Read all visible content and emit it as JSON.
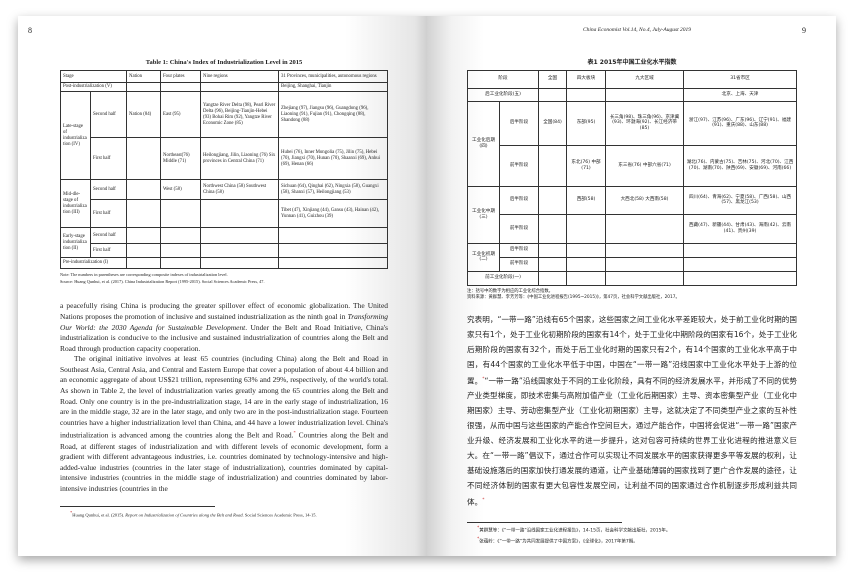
{
  "left_page": {
    "page_number": "8",
    "table": {
      "title": "Table 1: China's Index of Industrialization Level in 2015",
      "headers": [
        "Stage",
        "Nation",
        "Four plates",
        "Nine regions",
        "31 Provinces, municipalities, autonomous regions"
      ],
      "rows": {
        "post": {
          "stage": "Post-industrialization (V)",
          "provinces": "Beijing, Shanghai, Tianjin"
        },
        "late": {
          "stage": "Late-stage of industrialization (IV)",
          "second": {
            "half": "Second half",
            "nation": "Nation (84)",
            "plates": "East (95)",
            "regions": "Yangtze River Delta (98), Pearl River Delta (96), Beijing-Tianjin-Hebei (93) Bohai Rim (92), Yangtze River Economic Zone (85)",
            "provinces": "Zhejiang (97), Jiangsu (96), Guangdong (96), Liaoning (91), Fujian (91), Chongqing (88), Shandong (88)"
          },
          "first": {
            "half": "First half",
            "plates": "Northeast(76) Middle (71)",
            "regions": "Heilongjiang, Jilin, Liaoning (76) Six provinces in Central China (71)",
            "provinces": "Hubei (76), Inner Mongolia (75), Jilin (75), Hebei (70), Jiangxi (70), Hunan (70), Shaanxi (69), Anhui (69), Henan (66)"
          }
        },
        "mid": {
          "stage": "Mid-dle-stage of industrialization (III)",
          "second": {
            "half": "Second half",
            "plates": "West (58)",
            "regions": "Northwest China (58) Southwest China (58)",
            "provinces": "Sichuan (64), Qinghai (62), Ningxia (58), Guangxi (58), Shanxi (57), Heilongjiang (53)"
          },
          "first": {
            "half": "First half",
            "provinces": "Tibet (47), Xinjiang (44), Gansu (43), Hainan (42), Yunnan (41), Guizhou (39)"
          }
        },
        "early": {
          "stage": "Early-stage industrialization (II)",
          "second": {
            "half": "Second half"
          },
          "first": {
            "half": "First half"
          }
        },
        "pre": {
          "stage": "Pre-industrialization (I)"
        }
      },
      "note": "Note: The numbers in parentheses are corresponding composite indexes of industrialization level.",
      "source": "Source: Huang Qunhui, et al. (2017). China Industrialization Report (1995-2015). Social Sciences Academic Press, 47."
    },
    "paragraphs": [
      "a peacefully rising China is producing the greater spillover effect of economic globalization. The United Nations proposes the promotion of inclusive and sustained industrialization as the ninth goal in ",
      "Transforming Our World: the 2030 Agenda for Sustainable Development",
      ". Under the Belt and Road Initiative, China's industrialization is conducive to the inclusive and sustained industrialization of countries along the Belt and Road through production capacity cooperation.",
      "The original initiative involves at least 65 countries (including China) along the Belt and Road in Southeast Asia, Central Asia, and Central and Eastern Europe that cover a population of about 4.4 billion and an economic aggregate of about US$21 trillion, representing 63% and 29%, respectively, of the world's total. As shown in Table 2, the level of industrialization varies greatly among the 65 countries along the Belt and Road. Only one country is in the pre-industrialization stage, 14 are in the early stage of industrialization, 16 are in the middle stage, 32 are in the later stage, and only two are in the post-industrialization stage. Fourteen countries have a higher industrialization level than China, and 44 have a lower industrialization level. China's industrialization is advanced among the countries along the Belt and Road.",
      "*",
      " Countries along the Belt and Road, at different stages of industrialization and with different levels of economic development, form a gradient with different advantageous industries, i.e. countries dominated by technology-intensive and high-added-value industries (countries in the later stage of industrialization), countries dominated by capital-intensive industries (countries in the middle stage of industrialization) and countries dominated by labor-intensive industries (countries in the"
    ],
    "footnote": {
      "mark": "*",
      "pre": "Huang Qunhui, et al. (2015). ",
      "title": "Report on Industrialization of Countries along the Belt and Road.",
      "post": " Social Sciences Academic Press, 14-15."
    }
  },
  "right_page": {
    "running_head": "China Economist Vol.14, No.4, July-August 2019",
    "page_number": "9",
    "table": {
      "title": "表1  2015年中国工业化水平指数",
      "headers": [
        "阶段",
        "全国",
        "四大板块",
        "九大区域",
        "31省市区"
      ],
      "post": {
        "stage": "后工业化阶段(五)",
        "provinces": "北京、上海、天津"
      },
      "late": {
        "stage": "工业化后期(四)",
        "second": {
          "half": "后半阶段",
          "nation": "全国(84)",
          "plates": "东部(95)",
          "regions": "长三角(98)、珠三角(96)、京津冀(93)、环渤海(92)、长江经济带(85)",
          "provinces": "浙江(97)、江苏(96)、广东(96)、辽宁(91)、福建(91)、重庆(88)、山东(88)"
        },
        "first": {
          "half": "前半阶段",
          "plates": "东北(76) 中部(71)",
          "regions": "东三省(76) 中部六省(71)",
          "provinces": "湖北(76)、内蒙古(75)、吉林(75)、河北(70)、江西(70)、湖南(70)、陕西(69)、安徽(69)、河南(66)"
        }
      },
      "mid": {
        "stage": "工业化中期(三)",
        "second": {
          "half": "后半阶段",
          "plates": "西部(58)",
          "regions": "大西北(58) 大西南(58)",
          "provinces": "四川(64)、青海(62)、宁夏(58)、广西(58)、山西(57)、黑龙江(53)"
        },
        "first": {
          "half": "前半阶段",
          "provinces": "西藏(47)、新疆(44)、甘肃(43)、海南(42)、云南(41)、贵州(39)"
        }
      },
      "early": {
        "stage": "工业化初期(二)",
        "second": {
          "half": "后半阶段"
        },
        "first": {
          "half": "前半阶段"
        }
      },
      "pre": {
        "stage": "前工业化阶段(一)"
      },
      "note": "注：括号中的数字为相应的工业化综合指数。",
      "source": "资料来源：黄群慧、李芳芳等：《中国工业化进程报告(1995~2015)》，第47页，社会科学文献出版社，2017。"
    },
    "paragraph_a": "究表明，“一带一路”沿线有65个国家，这些国家之间工业化水平差距较大，处于前工业化时期的国家只有1个，处于工业化初期阶段的国家有14个，处于工业化中期阶段的国家有16个，处于工业化后期阶段的国家有32个，而处于后工业化时期的国家只有2个，有14个国家的工业化水平高于中国，有44个国家的工业化水平低于中国，中国在“一带一路”沿线国家中工业化水平处于上游的位置。",
    "mark_a": "*",
    "paragraph_b": "“一带一路”沿线国家处于不同的工业化阶段，具有不同的经济发展水平，并形成了不同的优势产业类型梯度，即技术密集与高附加值产业（工业化后期国家）主导、资本密集型产业（工业化中期国家）主导、劳动密集型产业（工业化初期国家）主导，这就决定了不同类型产业之家的互补性很强，从而中国与这些国家的产能合作空间巨大，通过产能合作，中国将会促进“一带一路”国家产业升级、经济发展和工业化水平的进一步提升，这对包容可持续的世界工业化进程的推进意义巨大。在“一带一路”倡议下，通过合作可以实现让不同发展水平的国家获得更多平等发展的权利，让基础设施落后的国家加快打通发展的通道，让产业基础薄弱的国家找到了更广合作发展的途径，让不同经济体制的国家有更大包容性发展空间，让利益不同的国家通过合作机制逐步形成利益共同体。",
    "mark_b": "*",
    "footnotes": [
      {
        "mark": "*",
        "text": "黄群慧等：《“一带一路”沿线国家工业化进程报告》，14-15页，社会科学文献出版社，2015年。"
      },
      {
        "mark": "*",
        "text": "张蕴岭：《“一带一路”为共同发展提供了中国方案》，《全球化》，2017年第7期。"
      }
    ]
  }
}
